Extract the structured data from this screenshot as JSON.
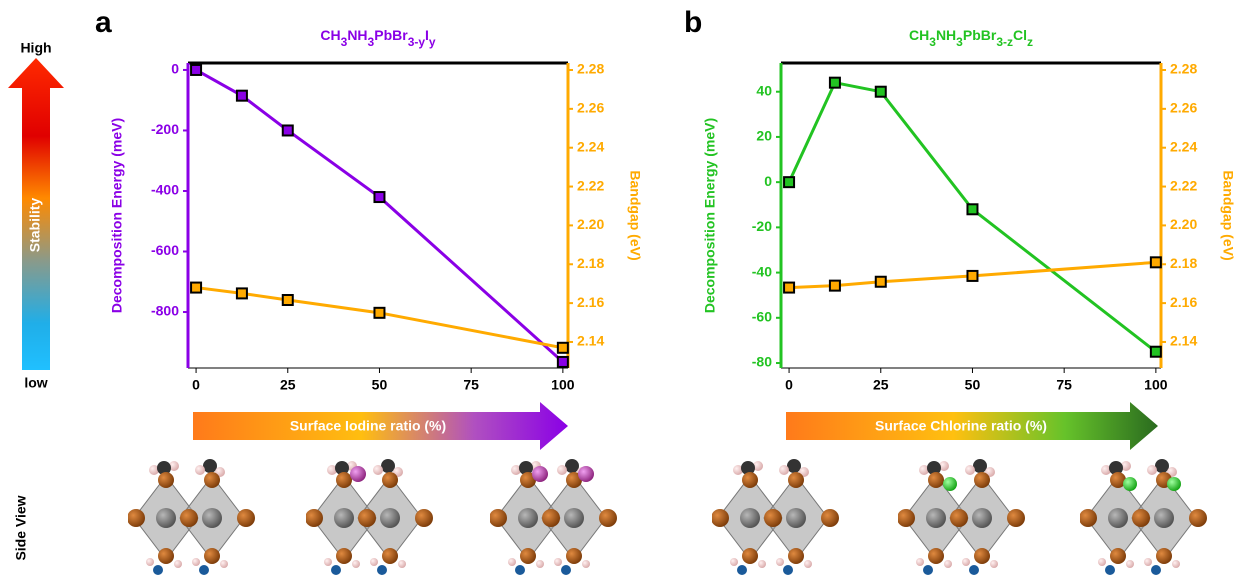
{
  "panel_labels": [
    "a",
    "b"
  ],
  "stability_scale": {
    "high": "High",
    "low": "low",
    "label": "Stability"
  },
  "side_view_label": "Side View",
  "chart_data": [
    {
      "type": "line",
      "title": [
        {
          "text": "CH"
        },
        {
          "text": "3",
          "sub": true
        },
        {
          "text": "NH"
        },
        {
          "text": "3",
          "sub": true
        },
        {
          "text": "PbBr"
        },
        {
          "text": "3-y",
          "sub": true
        },
        {
          "text": "I"
        },
        {
          "text": "y",
          "sub": true
        }
      ],
      "xlabel": "Surface Iodine ratio (%)",
      "ylabel": "Decomposition Energy  (meV)",
      "y2label": "Bandgap (eV)",
      "x": [
        0,
        12.5,
        25,
        50,
        100
      ],
      "xlim": [
        -2.2,
        101.4
      ],
      "xticks": [
        0,
        25,
        50,
        75,
        100
      ],
      "ylim": [
        -985,
        23
      ],
      "yticks": [
        0,
        -200,
        -400,
        -600,
        -800
      ],
      "y2lim": [
        2.1266,
        2.2836
      ],
      "y2ticks": [
        2.14,
        2.16,
        2.18,
        {
          "value": 2.2,
          "label": "2.20"
        },
        2.22,
        2.24,
        2.26,
        2.28
      ],
      "series": [
        {
          "color": "#8a00e6",
          "values": [
            0,
            -85,
            -200,
            -420,
            -965
          ]
        },
        {
          "color": "#ffaa00",
          "axis": "y2",
          "values": [
            2.168,
            2.165,
            2.1616,
            2.155,
            2.137
          ]
        }
      ]
    },
    {
      "type": "line",
      "title": [
        {
          "text": "CH"
        },
        {
          "text": "3",
          "sub": true
        },
        {
          "text": "NH"
        },
        {
          "text": "3",
          "sub": true
        },
        {
          "text": "PbBr"
        },
        {
          "text": "3-z",
          "sub": true
        },
        {
          "text": "Cl"
        },
        {
          "text": "z",
          "sub": true
        }
      ],
      "xlabel": "Surface Chlorine ratio (%)",
      "ylabel": "Decomposition Energy  (meV)",
      "y2label": "Bandgap (eV)",
      "x": [
        0,
        12.5,
        25,
        50,
        100
      ],
      "xlim": [
        -2.2,
        101.4
      ],
      "xticks": [
        0,
        25,
        50,
        75,
        100
      ],
      "ylim": [
        -82.2,
        52.7
      ],
      "yticks": [
        40,
        20,
        0,
        -20,
        -40,
        -60,
        -80
      ],
      "y2lim": [
        2.1266,
        2.2836
      ],
      "y2ticks": [
        2.14,
        2.16,
        2.18,
        {
          "value": 2.2,
          "label": "2.20"
        },
        2.22,
        2.24,
        2.26,
        2.28
      ],
      "series": [
        {
          "color": "#22c322",
          "values": [
            0,
            44,
            40,
            -12,
            -75
          ]
        },
        {
          "color": "#ffaa00",
          "axis": "y2",
          "values": [
            2.168,
            2.169,
            2.171,
            2.174,
            2.181
          ]
        }
      ]
    }
  ]
}
